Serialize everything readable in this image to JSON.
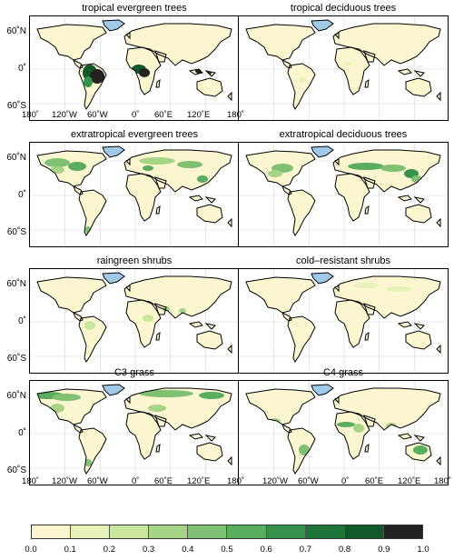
{
  "panels": [
    {
      "title": "tropical evergreen trees"
    },
    {
      "title": "tropical deciduous trees"
    },
    {
      "title": "extratropical evergreen trees"
    },
    {
      "title": "extratropical deciduous trees"
    },
    {
      "title": "raingreen shrubs"
    },
    {
      "title": "cold–resistant shrubs"
    },
    {
      "title": "C3 grass"
    },
    {
      "title": "C4 grass"
    }
  ],
  "lat_labels": [
    "60˚N",
    "0˚",
    "60˚S"
  ],
  "lon_labels": [
    "180˚",
    "120˚W",
    "60˚W",
    "0˚",
    "60˚E",
    "120˚E",
    "180˚"
  ],
  "colorbar": {
    "ticks": [
      "0.0",
      "0.1",
      "0.2",
      "0.3",
      "0.4",
      "0.5",
      "0.6",
      "0.7",
      "0.8",
      "0.9",
      "1.0"
    ],
    "colors": [
      "#fbf6cf",
      "#e6f2b8",
      "#c9e69c",
      "#a6d486",
      "#7fc072",
      "#58ad5f",
      "#34924a",
      "#1d7539",
      "#10592b",
      "#222222"
    ]
  },
  "colors": {
    "ocean": "#ffffff",
    "ice": "#9ecae8",
    "land": "#fbf6cf",
    "coast": "#000000",
    "grid": "#d8d8d8"
  }
}
